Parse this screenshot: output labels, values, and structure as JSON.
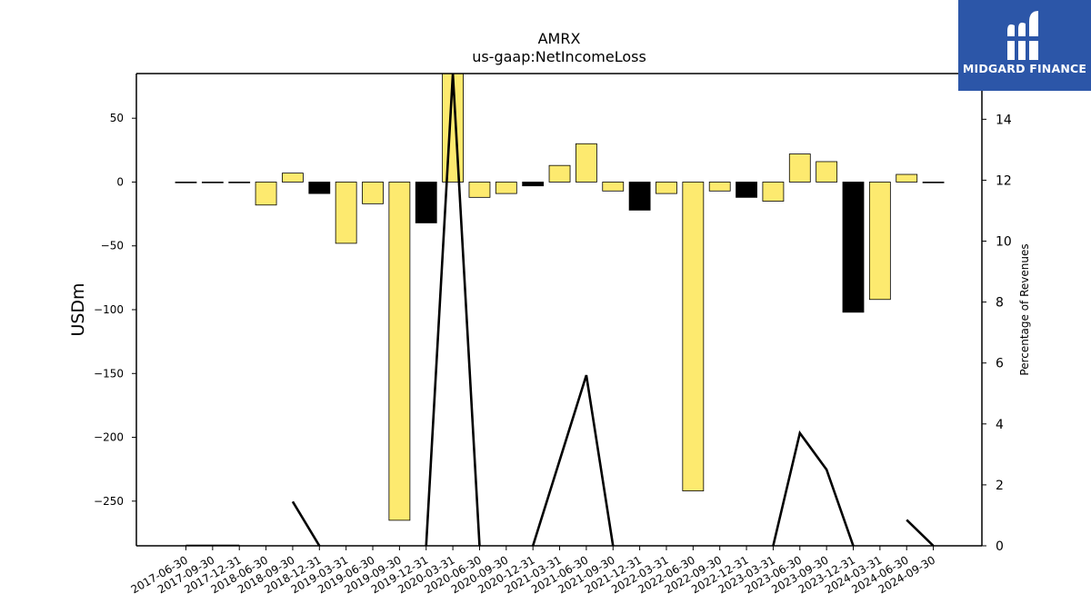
{
  "chart_data": {
    "type": "bar",
    "title": "AMRX",
    "subtitle": "us-gaap:NetIncomeLoss",
    "ylabel": "USDm",
    "y2label": "Percentage of Revenues",
    "ylim": [
      -285,
      85
    ],
    "y2lim": [
      0,
      15.5
    ],
    "yticks": [
      50,
      0,
      -50,
      -100,
      -150,
      -200,
      -250
    ],
    "ytick_labels": [
      "50",
      "0",
      "−50",
      "−100",
      "−150",
      "−200",
      "−250"
    ],
    "y2ticks": [
      0,
      2,
      4,
      6,
      8,
      10,
      12,
      14
    ],
    "grid": false,
    "categories": [
      "2017-06-30",
      "2017-09-30",
      "2017-12-31",
      "2018-06-30",
      "2018-09-30",
      "2018-12-31",
      "2019-03-31",
      "2019-06-30",
      "2019-09-30",
      "2019-12-31",
      "2020-03-31",
      "2020-06-30",
      "2020-09-30",
      "2020-12-31",
      "2021-03-31",
      "2021-06-30",
      "2021-09-30",
      "2021-12-31",
      "2022-03-31",
      "2022-06-30",
      "2022-09-30",
      "2022-12-31",
      "2023-03-31",
      "2023-06-30",
      "2023-09-30",
      "2023-12-31",
      "2024-03-31",
      "2024-06-30",
      "2024-09-30"
    ],
    "series": [
      {
        "values": [
          0,
          0,
          0,
          -18,
          7,
          -9,
          -48,
          -17,
          -265,
          -32,
          85,
          -12,
          -9,
          -3,
          13,
          30,
          -7,
          -22,
          -9,
          -242,
          -7,
          -12,
          -15,
          22,
          16,
          -102,
          -92,
          6,
          0
        ],
        "highlight": [
          false,
          false,
          false,
          false,
          false,
          true,
          false,
          false,
          false,
          true,
          false,
          false,
          false,
          true,
          false,
          false,
          false,
          true,
          false,
          false,
          false,
          true,
          false,
          false,
          false,
          true,
          false,
          false,
          false
        ]
      },
      {
        "axis": "right",
        "type": "line",
        "values": [
          0.0,
          0.0,
          0.0,
          null,
          1.45,
          0.0,
          null,
          null,
          null,
          0.0,
          15.5,
          0.0,
          null,
          0.0,
          2.8,
          5.6,
          0.0,
          null,
          null,
          null,
          null,
          null,
          0.0,
          3.7,
          2.5,
          0.0,
          null,
          0.85,
          0.0
        ]
      }
    ],
    "colors": {
      "bar": "#fdea6f",
      "bar_highlight": "#000000",
      "line": "#000000"
    }
  },
  "logo": {
    "text": "MIDGARD FINANCE",
    "bg": "#2c56a8"
  }
}
